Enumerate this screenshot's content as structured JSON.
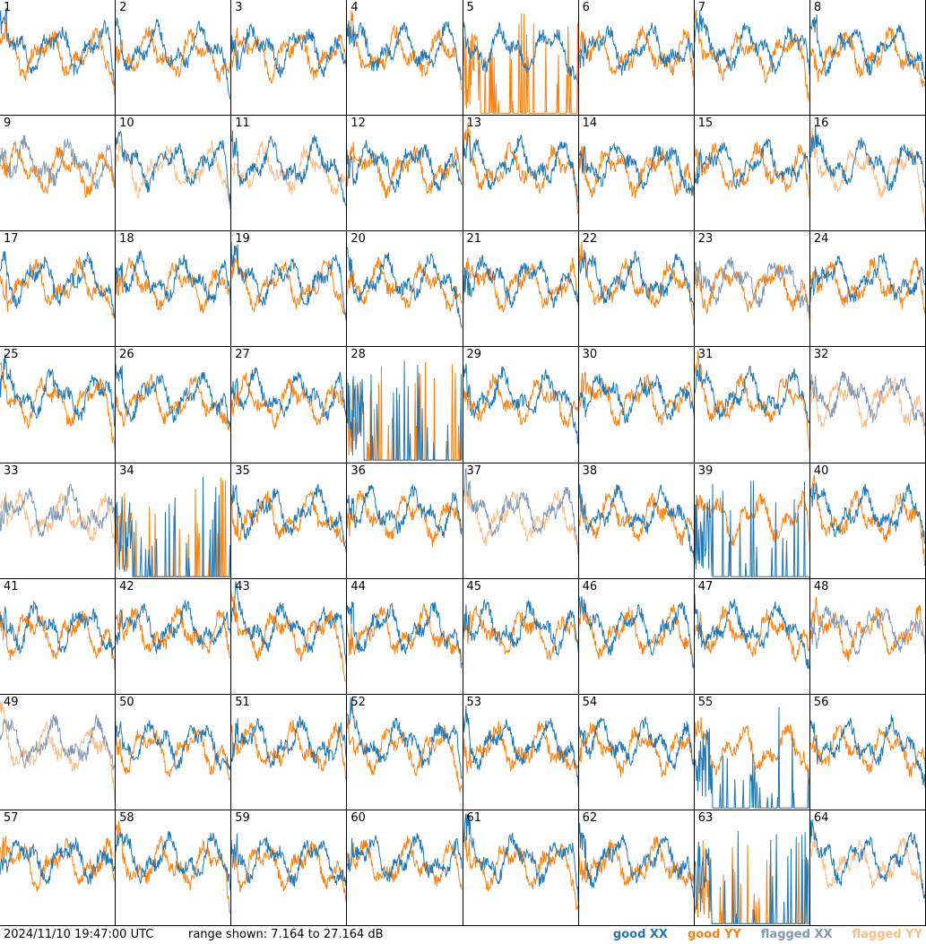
{
  "chart_data": {
    "type": "line",
    "layout": "8x8 small multiples",
    "tiles": [
      "1",
      "2",
      "3",
      "4",
      "5",
      "6",
      "7",
      "8",
      "9",
      "10",
      "11",
      "12",
      "13",
      "14",
      "15",
      "16",
      "17",
      "18",
      "19",
      "20",
      "21",
      "22",
      "23",
      "24",
      "25",
      "26",
      "27",
      "28",
      "29",
      "30",
      "31",
      "32",
      "33",
      "34",
      "35",
      "36",
      "37",
      "38",
      "39",
      "40",
      "41",
      "42",
      "43",
      "44",
      "45",
      "46",
      "47",
      "48",
      "49",
      "50",
      "51",
      "52",
      "53",
      "54",
      "55",
      "56",
      "57",
      "58",
      "59",
      "60",
      "61",
      "62",
      "63",
      "64"
    ],
    "y_range_db": [
      7.164,
      27.164
    ],
    "tile_status": {
      "flagged_xx": [
        "9",
        "23",
        "32",
        "33",
        "37",
        "48",
        "49"
      ],
      "flagged_yy": [
        "10",
        "11",
        "16",
        "32",
        "33",
        "37",
        "49",
        "64"
      ],
      "spiky_xx": [
        "28",
        "34",
        "39",
        "55",
        "63"
      ],
      "spiky_yy": [
        "5",
        "28",
        "34",
        "63"
      ]
    },
    "timestamp": "2024/11/10 19:47:00 UTC",
    "range_text": "range shown: 7.164 to 27.164 dB",
    "legend": [
      {
        "label": "good XX",
        "color": "#1f77b4"
      },
      {
        "label": "good YY",
        "color": "#ff7f0e"
      },
      {
        "label": "flagged XX",
        "color": "#7f98b4"
      },
      {
        "label": "flagged YY",
        "color": "#ffbb82"
      }
    ],
    "grid": false
  }
}
